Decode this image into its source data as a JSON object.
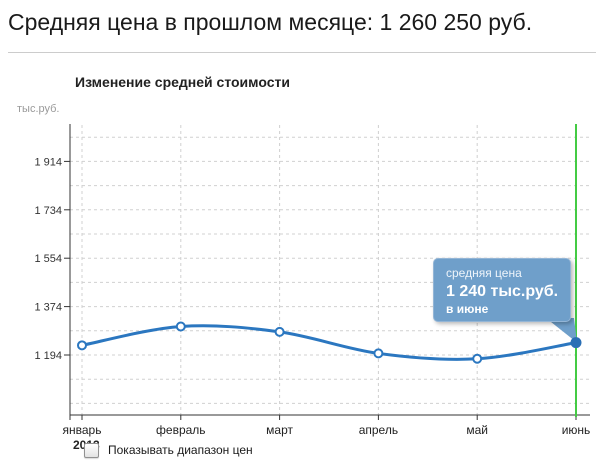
{
  "header": {
    "title": "Средняя цена в прошлом месяце: 1 260 250 руб."
  },
  "chart": {
    "title": "Изменение средней стоимости",
    "unit_label": "тыс.руб.",
    "year_label": "2013",
    "checkbox_label": "Показывать диапазон цен",
    "tooltip": {
      "series": "средняя цена",
      "value": "1 240 тыс.руб.",
      "period": "в июне"
    }
  },
  "chart_data": {
    "type": "line",
    "title": "Изменение средней стоимости",
    "ylabel": "тыс.руб.",
    "xlabel": "",
    "categories": [
      "январь",
      "февраль",
      "март",
      "апрель",
      "май",
      "июнь"
    ],
    "year": "2013",
    "series": [
      {
        "name": "средняя цена",
        "values": [
          1230,
          1300,
          1280,
          1200,
          1180,
          1240
        ]
      }
    ],
    "y_ticks": [
      1194,
      1374,
      1554,
      1734,
      1914
    ],
    "grid_min": 1014,
    "grid_max": 2004,
    "grid_step": 90,
    "ylim": [
      1014,
      2050
    ],
    "grid": "dashed",
    "legend_position": "none",
    "highlight_index": 5,
    "highlight_tooltip": "средняя цена 1 240 тыс.руб. в июне",
    "colors": {
      "line": "#2b77c0",
      "marker_fill": "#ffffff",
      "current_point": "#2a6fb5",
      "current_line": "#44cb44",
      "tooltip_fill": "#6f9fca",
      "tooltip_border": "#93b5d6",
      "grid_line": "#d0d0d0",
      "axis": "#333333",
      "tick_label": "#333333",
      "month_label": "#222222"
    }
  }
}
